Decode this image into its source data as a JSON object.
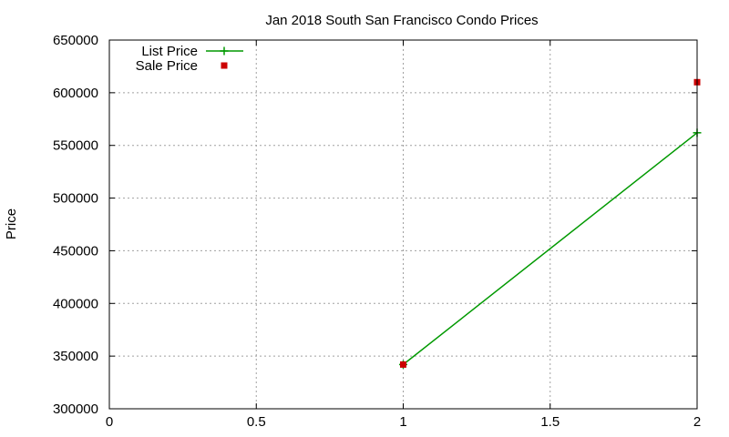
{
  "chart_data": {
    "type": "line",
    "title": "Jan 2018 South San Francisco Condo Prices",
    "xlabel": "",
    "ylabel": "Price",
    "xlim": [
      0,
      2
    ],
    "ylim": [
      300000,
      650000
    ],
    "x_ticks": [
      "0",
      "0.5",
      "1",
      "1.5",
      "2"
    ],
    "x_tick_values": [
      0,
      0.5,
      1,
      1.5,
      2
    ],
    "y_ticks": [
      "300000",
      "350000",
      "400000",
      "450000",
      "500000",
      "550000",
      "600000",
      "650000"
    ],
    "y_tick_values": [
      300000,
      350000,
      400000,
      450000,
      500000,
      550000,
      600000,
      650000
    ],
    "grid": true,
    "legend_position": "top-left",
    "series": [
      {
        "name": "List Price",
        "style": "line-plus",
        "color": "#009900",
        "points": [
          [
            1,
            342000
          ],
          [
            2,
            562000
          ]
        ]
      },
      {
        "name": "Sale Price",
        "style": "square-markers",
        "color": "#cc0000",
        "points": [
          [
            1,
            342000
          ],
          [
            2,
            610000
          ]
        ]
      }
    ]
  }
}
